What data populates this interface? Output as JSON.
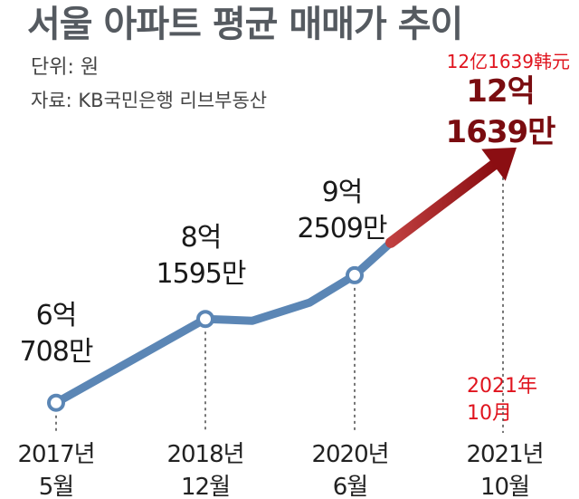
{
  "header": {
    "title": "서울 아파트 평균 매매가 추이",
    "unit": "단위: 원",
    "source": "자료: KB국민은행 리브부동산"
  },
  "annotations": {
    "top_right": "12亿1639韩元",
    "bottom_right_line1": "2021年",
    "bottom_right_line2": "10月"
  },
  "colors": {
    "line": "#5b86b5",
    "arrow_end": "#8b0e12",
    "arrow_start": "#c04040",
    "highlight_label": "#7a0c10",
    "annotation": "#e0141e"
  },
  "chart_data": {
    "type": "line",
    "title": "서울 아파트 평균 매매가 추이",
    "unit": "원",
    "x": [
      "2017년 5월",
      "2018년 12월",
      "2020년 6월",
      "2021년 10월"
    ],
    "values_manwon": [
      60708,
      81595,
      92509,
      121639
    ],
    "data_labels": [
      [
        "6억",
        "708만"
      ],
      [
        "8억",
        "1595만"
      ],
      [
        "9억",
        "2509만"
      ],
      [
        "12억",
        "1639만"
      ]
    ],
    "tick_labels": [
      [
        "2017년",
        "5월"
      ],
      [
        "2018년",
        "12월"
      ],
      [
        "2020년",
        "6월"
      ],
      [
        "2021년",
        "10월"
      ]
    ],
    "highlight_last": true,
    "grid": false,
    "legend": "none"
  }
}
